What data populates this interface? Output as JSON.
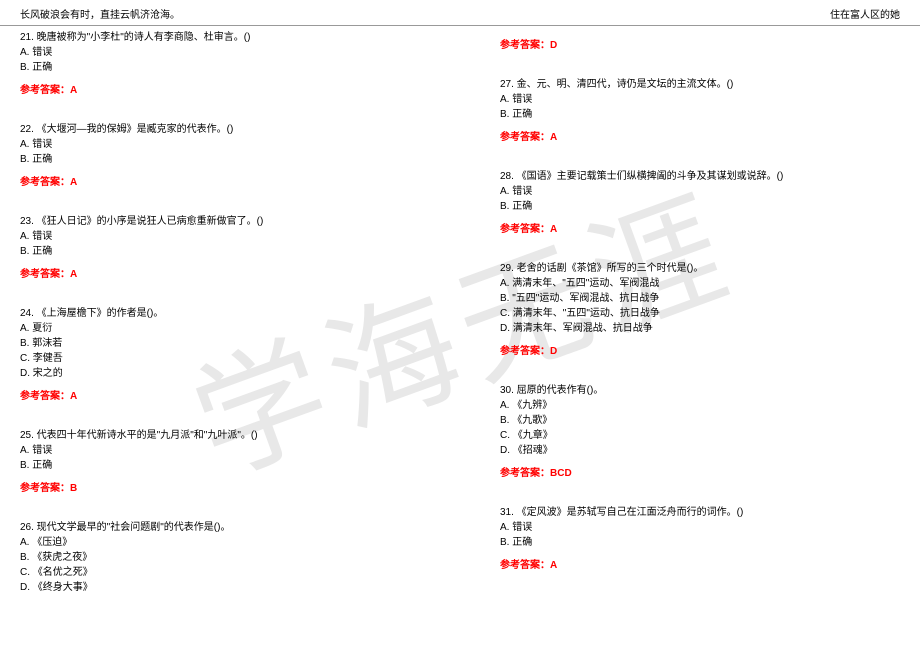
{
  "header": {
    "left": "长风破浪会有时，直挂云帆济沧海。",
    "right": "住在富人区的她"
  },
  "watermark": "学海无涯",
  "answer_label_prefix": "参考答案：",
  "leftColumn": [
    {
      "q": "21. 晚唐被称为\"小李杜\"的诗人有李商隐、杜审言。()",
      "opts": [
        "A. 错误",
        "B. 正确"
      ],
      "ans": "A"
    },
    {
      "q": "22. 《大堰河—我的保姆》是臧克家的代表作。()",
      "opts": [
        "A. 错误",
        "B. 正确"
      ],
      "ans": "A"
    },
    {
      "q": "23. 《狂人日记》的小序是说狂人已病愈重新做官了。()",
      "opts": [
        "A. 错误",
        "B. 正确"
      ],
      "ans": "A"
    },
    {
      "q": "24. 《上海屋檐下》的作者是()。",
      "opts": [
        "A. 夏衍",
        "B. 郭沫若",
        "C. 李健吾",
        "D. 宋之的"
      ],
      "ans": "A"
    },
    {
      "q": "25. 代表四十年代新诗水平的是\"九月派\"和\"九叶派\"。()",
      "opts": [
        "A. 错误",
        "B. 正确"
      ],
      "ans": "B"
    },
    {
      "q": "26. 现代文学最早的\"社会问题剧\"的代表作是()。",
      "opts": [
        "A. 《压迫》",
        "B. 《获虎之夜》",
        "C. 《名优之死》",
        "D. 《终身大事》"
      ],
      "ans": ""
    }
  ],
  "rightColumn": [
    {
      "q": "",
      "opts": [],
      "ans": "D"
    },
    {
      "q": "27. 金、元、明、清四代，诗仍是文坛的主流文体。()",
      "opts": [
        "A. 错误",
        "B. 正确"
      ],
      "ans": "A"
    },
    {
      "q": "28. 《国语》主要记载策士们纵横捭阖的斗争及其谋划或说辞。()",
      "opts": [
        "A. 错误",
        "B. 正确"
      ],
      "ans": "A"
    },
    {
      "q": "29. 老舍的话剧《茶馆》所写的三个时代是()。",
      "opts": [
        "A. 满清末年、\"五四\"运动、军阀混战",
        "B. \"五四\"运动、军阀混战、抗日战争",
        "C. 满清末年、\"五四\"运动、抗日战争",
        "D. 满清末年、军阀混战、抗日战争"
      ],
      "ans": "D"
    },
    {
      "q": "30. 屈原的代表作有()。",
      "opts": [
        "A. 《九辨》",
        "B. 《九歌》",
        "C. 《九章》",
        "D. 《招魂》"
      ],
      "ans": "BCD"
    },
    {
      "q": "31. 《定风波》是苏轼写自己在江面泛舟而行的词作。()",
      "opts": [
        "A. 错误",
        "B. 正确"
      ],
      "ans": "A"
    }
  ]
}
